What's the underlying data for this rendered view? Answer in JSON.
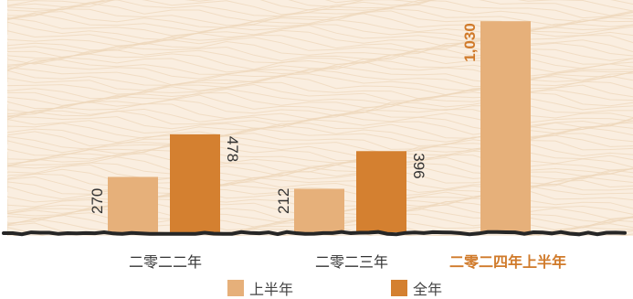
{
  "chart_data": {
    "type": "bar",
    "categories": [
      "二零二二年",
      "二零二三年",
      "二零二四年上半年"
    ],
    "category_highlight": [
      false,
      false,
      true
    ],
    "series": [
      {
        "name": "上半年",
        "values": [
          270,
          212,
          1030
        ],
        "labels": [
          "270",
          "212",
          "1,030"
        ],
        "color": "#e6b07a"
      },
      {
        "name": "全年",
        "values": [
          478,
          396,
          null
        ],
        "labels": [
          "478",
          "396",
          ""
        ],
        "color": "#d48030"
      }
    ],
    "ylim": [
      0,
      1080
    ],
    "grid": false,
    "legend_position": "bottom-center",
    "colors": {
      "background": "#faeee0",
      "texture": "#eed7bb",
      "baseline": "#262626",
      "label_text": "#333333",
      "highlight_label": "#d07a2a"
    }
  }
}
